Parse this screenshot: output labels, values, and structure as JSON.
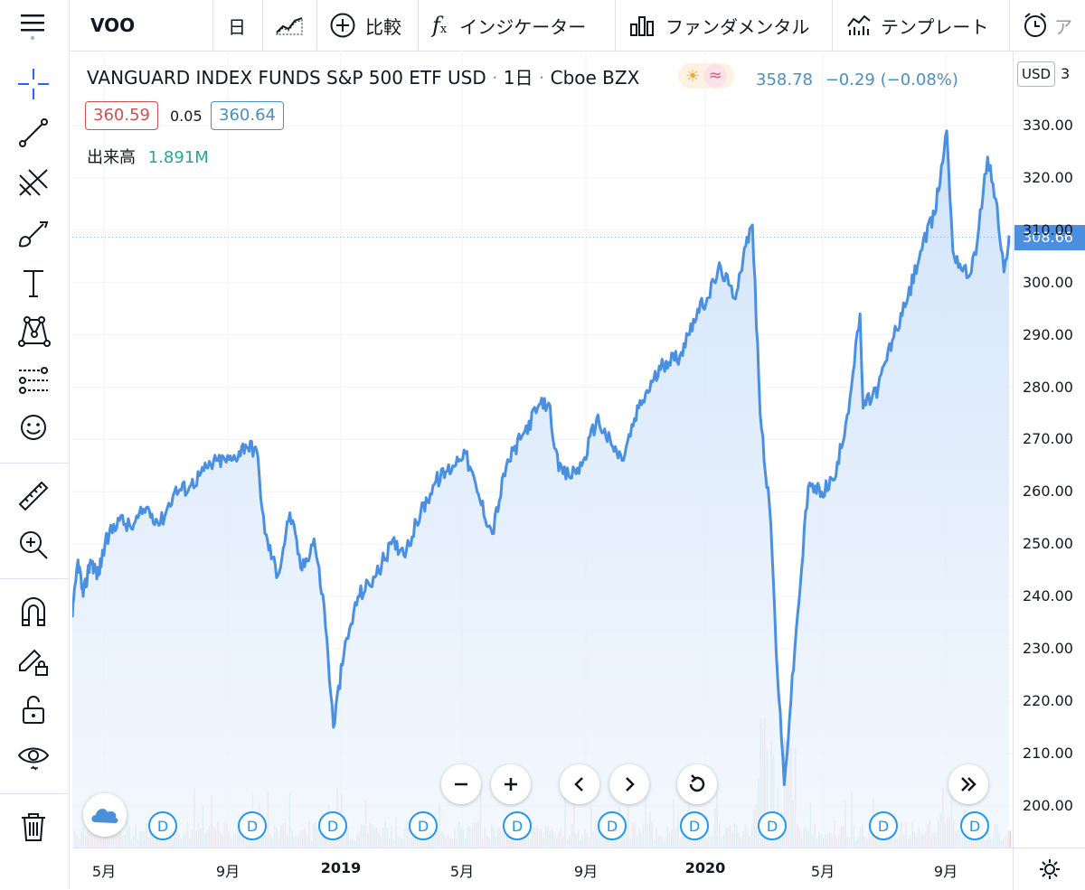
{
  "toolbar": {
    "symbol": "VOO",
    "interval": "日",
    "compare": "比較",
    "indicators": "インジケーター",
    "fundamentals": "ファンダメンタル",
    "templates": "テンプレート",
    "alert_partial": "ア"
  },
  "legend": {
    "title": "VANGUARD INDEX FUNDS S&P 500 ETF USD",
    "interval": "1日",
    "exchange": "Cboe BZX",
    "last": "358.78",
    "change": "−0.29 (−0.08%)",
    "bid": "360.59",
    "spread": "0.05",
    "ask": "360.64",
    "volume_label": "出来高",
    "volume_value": "1.891M"
  },
  "price_axis": {
    "currency": "USD",
    "ticks": [
      "330.00",
      "320.00",
      "310.00",
      "300.00",
      "290.00",
      "280.00",
      "270.00",
      "260.00",
      "250.00",
      "240.00",
      "230.00",
      "220.00",
      "210.00",
      "200.00"
    ],
    "current_price": "308.66",
    "partial_top": "3"
  },
  "time_axis": [
    {
      "label": "5月",
      "bold": false
    },
    {
      "label": "9月",
      "bold": false
    },
    {
      "label": "2019",
      "bold": true
    },
    {
      "label": "5月",
      "bold": false
    },
    {
      "label": "9月",
      "bold": false
    },
    {
      "label": "2020",
      "bold": true
    },
    {
      "label": "5月",
      "bold": false
    },
    {
      "label": "9月",
      "bold": false
    }
  ],
  "dividend_label": "D",
  "colors": {
    "line": "#4a90e2",
    "area": "#dbe9fb",
    "bid": "#d0504e",
    "ask": "#4a8ec4",
    "volume_text": "#26a69a",
    "price_label_bg": "#4c8ee0"
  },
  "chart_data": {
    "type": "area",
    "x_range": [
      "2018-03",
      "2020-10"
    ],
    "ylim": [
      195,
      335
    ],
    "series": [
      {
        "values": [
          [
            "2018-03-01",
            236
          ],
          [
            "2018-03-12",
            247
          ],
          [
            "2018-03-22",
            240
          ],
          [
            "2018-04-05",
            247
          ],
          [
            "2018-04-20",
            244
          ],
          [
            "2018-05-02",
            250
          ],
          [
            "2018-05-15",
            255
          ],
          [
            "2018-05-28",
            253
          ],
          [
            "2018-06-12",
            257
          ],
          [
            "2018-06-26",
            254
          ],
          [
            "2018-07-10",
            260
          ],
          [
            "2018-07-25",
            261
          ],
          [
            "2018-08-08",
            264
          ],
          [
            "2018-08-22",
            266
          ],
          [
            "2018-09-05",
            266
          ],
          [
            "2018-09-20",
            269
          ],
          [
            "2018-10-02",
            268
          ],
          [
            "2018-10-11",
            252
          ],
          [
            "2018-10-25",
            244
          ],
          [
            "2018-11-07",
            256
          ],
          [
            "2018-11-20",
            245
          ],
          [
            "2018-12-03",
            251
          ],
          [
            "2018-12-14",
            238
          ],
          [
            "2018-12-24",
            215
          ],
          [
            "2019-01-04",
            229
          ],
          [
            "2019-01-18",
            240
          ],
          [
            "2019-02-05",
            244
          ],
          [
            "2019-02-20",
            250
          ],
          [
            "2019-03-07",
            249
          ],
          [
            "2019-03-21",
            256
          ],
          [
            "2019-04-05",
            262
          ],
          [
            "2019-04-22",
            265
          ],
          [
            "2019-05-03",
            268
          ],
          [
            "2019-05-16",
            260
          ],
          [
            "2019-05-31",
            252
          ],
          [
            "2019-06-14",
            265
          ],
          [
            "2019-06-28",
            270
          ],
          [
            "2019-07-15",
            276
          ],
          [
            "2019-07-26",
            277
          ],
          [
            "2019-08-05",
            264
          ],
          [
            "2019-08-15",
            263
          ],
          [
            "2019-08-28",
            265
          ],
          [
            "2019-09-12",
            274
          ],
          [
            "2019-09-27",
            269
          ],
          [
            "2019-10-08",
            266
          ],
          [
            "2019-10-25",
            276
          ],
          [
            "2019-11-08",
            281
          ],
          [
            "2019-11-22",
            285
          ],
          [
            "2019-12-06",
            286
          ],
          [
            "2019-12-20",
            293
          ],
          [
            "2020-01-03",
            297
          ],
          [
            "2020-01-17",
            303
          ],
          [
            "2020-01-31",
            297
          ],
          [
            "2020-02-12",
            307
          ],
          [
            "2020-02-19",
            311
          ],
          [
            "2020-02-27",
            275
          ],
          [
            "2020-03-09",
            254
          ],
          [
            "2020-03-16",
            225
          ],
          [
            "2020-03-23",
            204
          ],
          [
            "2020-04-03",
            230
          ],
          [
            "2020-04-17",
            261
          ],
          [
            "2020-05-01",
            260
          ],
          [
            "2020-05-15",
            263
          ],
          [
            "2020-05-29",
            278
          ],
          [
            "2020-06-08",
            294
          ],
          [
            "2020-06-11",
            276
          ],
          [
            "2020-06-26",
            280
          ],
          [
            "2020-07-10",
            289
          ],
          [
            "2020-07-24",
            296
          ],
          [
            "2020-08-07",
            306
          ],
          [
            "2020-08-21",
            313
          ],
          [
            "2020-09-02",
            329
          ],
          [
            "2020-09-08",
            306
          ],
          [
            "2020-09-23",
            301
          ],
          [
            "2020-10-02",
            308
          ],
          [
            "2020-10-12",
            324
          ],
          [
            "2020-10-20",
            316
          ],
          [
            "2020-10-28",
            302
          ],
          [
            "2020-11-03",
            309
          ]
        ]
      }
    ]
  }
}
